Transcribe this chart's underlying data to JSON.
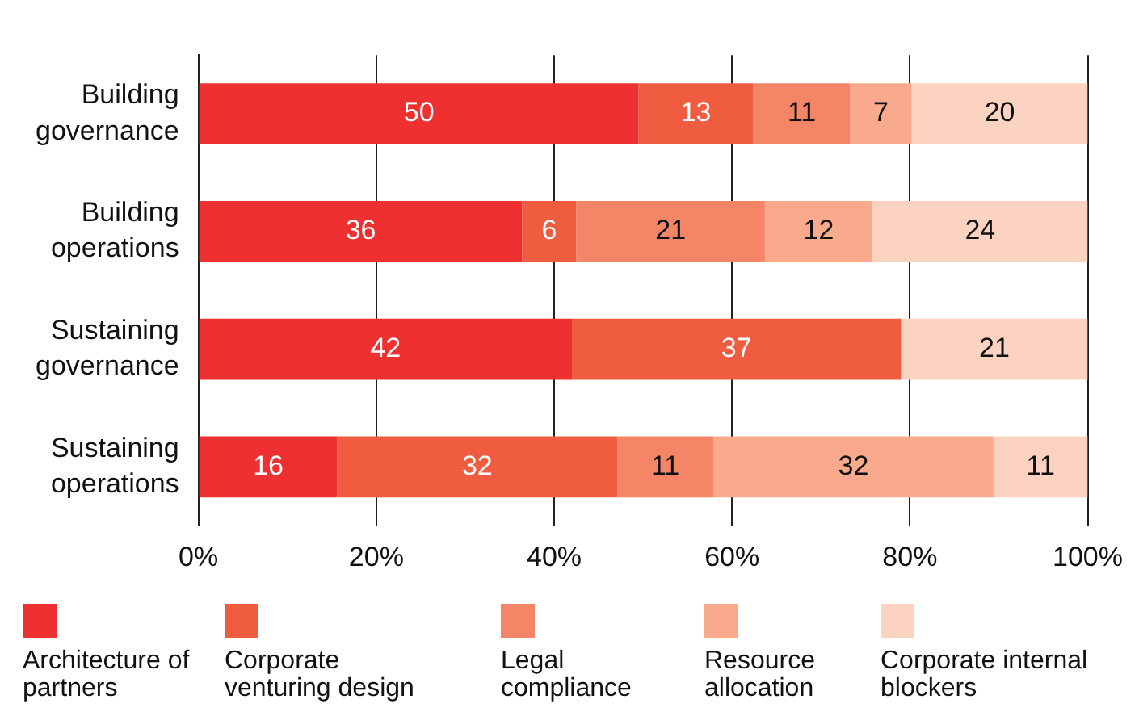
{
  "chart_data": {
    "type": "bar",
    "orientation": "horizontal",
    "stacked": true,
    "categories": [
      "Building governance",
      "Building operations",
      "Sustaining governance",
      "Sustaining operations"
    ],
    "xlim": [
      0,
      100
    ],
    "xticks": [
      {
        "value": 0,
        "label": "0%"
      },
      {
        "value": 20,
        "label": "20%"
      },
      {
        "value": 40,
        "label": "40%"
      },
      {
        "value": 60,
        "label": "60%"
      },
      {
        "value": 80,
        "label": "80%"
      },
      {
        "value": 100,
        "label": "100%"
      }
    ],
    "grid": "x",
    "legend": "bottom",
    "series": [
      {
        "name": "Architecture of partners",
        "color": "#ee3030",
        "values": [
          49.5,
          36.4,
          42,
          15.6
        ],
        "value_labels": [
          "50",
          "36",
          "42",
          "16"
        ]
      },
      {
        "name": "Corporate venturing design",
        "color": "#f05c40",
        "values": [
          12.9,
          6.1,
          37,
          31.5
        ],
        "value_labels": [
          "13",
          "6",
          "37",
          "32"
        ]
      },
      {
        "name": "Legal compliance",
        "color": "#f48566",
        "values": [
          10.9,
          21.2,
          null,
          10.8
        ],
        "value_labels": [
          "11",
          "21",
          null,
          "11"
        ]
      },
      {
        "name": "Resource allocation",
        "color": "#f9aa8c",
        "values": [
          6.9,
          12.1,
          null,
          31.5
        ],
        "value_labels": [
          "7",
          "12",
          null,
          "32"
        ]
      },
      {
        "name": "Corporate internal blockers",
        "color": "#fcd3c0",
        "values": [
          19.8,
          24.2,
          21,
          10.6
        ],
        "value_labels": [
          "20",
          "24",
          "21",
          "11"
        ]
      }
    ]
  }
}
